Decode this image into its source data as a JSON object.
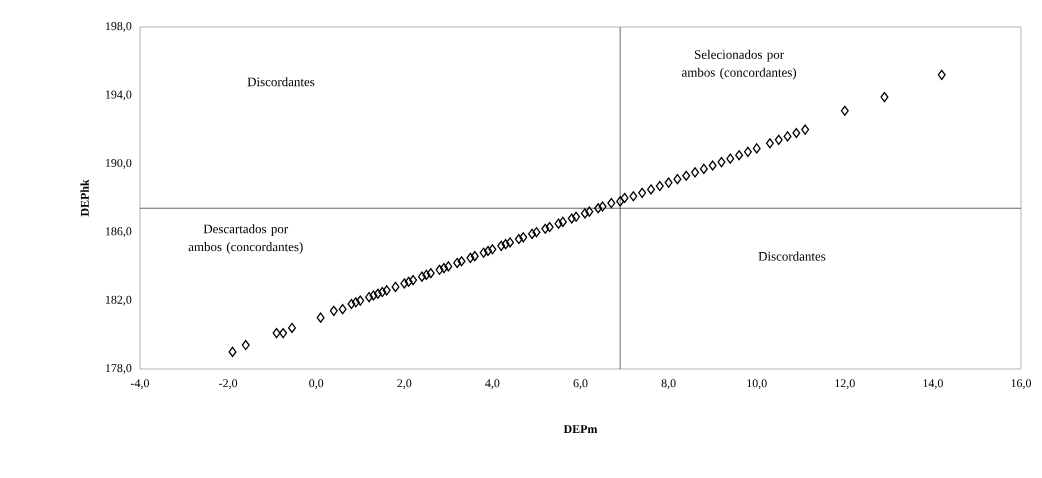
{
  "chart_data": {
    "type": "scatter",
    "xlabel": "DEPm",
    "ylabel": "DEPhk",
    "xlim": [
      -4,
      16
    ],
    "ylim": [
      178,
      198
    ],
    "xticks": [
      {
        "value": -4,
        "label": "-4,0"
      },
      {
        "value": -2,
        "label": "-2,0"
      },
      {
        "value": 0,
        "label": "0,0"
      },
      {
        "value": 2,
        "label": "2,0"
      },
      {
        "value": 4,
        "label": "4,0"
      },
      {
        "value": 6,
        "label": "6,0"
      },
      {
        "value": 8,
        "label": "8,0"
      },
      {
        "value": 10,
        "label": "10,0"
      },
      {
        "value": 12,
        "label": "12,0"
      },
      {
        "value": 14,
        "label": "14,0"
      },
      {
        "value": 16,
        "label": "16,0"
      }
    ],
    "yticks": [
      {
        "value": 178,
        "label": "178,0"
      },
      {
        "value": 182,
        "label": "182,0"
      },
      {
        "value": 186,
        "label": "186,0"
      },
      {
        "value": 190,
        "label": "190,0"
      },
      {
        "value": 194,
        "label": "194,0"
      },
      {
        "value": 198,
        "label": "198,0"
      }
    ],
    "marker": "diamond",
    "grid": false,
    "ref_lines": [
      {
        "axis": "x",
        "value": 6.9,
        "color": "#000000"
      },
      {
        "axis": "y",
        "value": 187.4,
        "color": "#000000"
      }
    ],
    "annotations": [
      "Discordantes",
      "Selecionados por ambos (concordantes)",
      "Descartados por ambos (concordantes)",
      "Discordantes"
    ],
    "x": [
      -1.9,
      -1.6,
      -0.9,
      -0.75,
      -0.55,
      0.1,
      0.4,
      0.6,
      0.8,
      0.9,
      1.0,
      1.2,
      1.3,
      1.4,
      1.5,
      1.6,
      1.8,
      2.0,
      2.1,
      2.2,
      2.4,
      2.5,
      2.6,
      2.8,
      2.9,
      3.0,
      3.2,
      3.3,
      3.5,
      3.6,
      3.8,
      3.9,
      4.0,
      4.2,
      4.3,
      4.4,
      4.6,
      4.7,
      4.9,
      5.0,
      5.2,
      5.3,
      5.5,
      5.6,
      5.8,
      5.9,
      6.1,
      6.2,
      6.4,
      6.5,
      6.7,
      6.9,
      7.0,
      7.2,
      7.4,
      7.6,
      7.8,
      8.0,
      8.2,
      8.4,
      8.6,
      8.8,
      9.0,
      9.2,
      9.4,
      9.6,
      9.8,
      10.0,
      10.3,
      10.5,
      10.7,
      10.9,
      11.1,
      12.0,
      12.9,
      14.2
    ],
    "series": [
      {
        "color": "#000000",
        "values": [
          179.0,
          179.4,
          180.1,
          180.1,
          180.4,
          181.0,
          181.4,
          181.5,
          181.8,
          181.9,
          182.0,
          182.2,
          182.3,
          182.4,
          182.5,
          182.6,
          182.8,
          183.0,
          183.1,
          183.2,
          183.4,
          183.5,
          183.6,
          183.8,
          183.9,
          184.0,
          184.2,
          184.3,
          184.5,
          184.6,
          184.8,
          184.9,
          185.0,
          185.2,
          185.3,
          185.4,
          185.6,
          185.7,
          185.9,
          186.0,
          186.2,
          186.3,
          186.5,
          186.6,
          186.8,
          186.9,
          187.1,
          187.2,
          187.4,
          187.5,
          187.7,
          187.8,
          188.0,
          188.1,
          188.3,
          188.5,
          188.7,
          188.9,
          189.1,
          189.3,
          189.5,
          189.7,
          189.9,
          190.1,
          190.3,
          190.5,
          190.7,
          190.9,
          191.2,
          191.4,
          191.6,
          191.8,
          192.0,
          193.1,
          193.9,
          195.2
        ]
      }
    ]
  }
}
